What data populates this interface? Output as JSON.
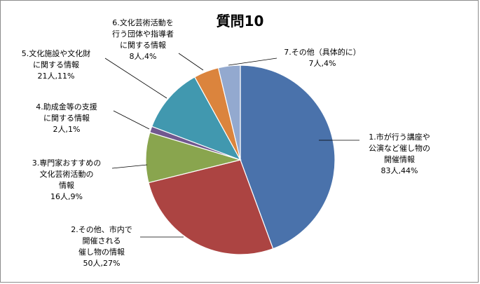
{
  "chart_data": {
    "type": "pie",
    "title": "質問10",
    "slices": [
      {
        "name": "1.市が行う講座や公演など催し物の開催情報",
        "count": "83人",
        "percent_label": "44%",
        "value": 83,
        "color": "#4a72ab",
        "label_lines": [
          "1.市が行う講座や",
          "公演など催し物の",
          "開催情報",
          "83人,44%"
        ]
      },
      {
        "name": "2.その他、市内で開催される催し物の情報",
        "count": "50人",
        "percent_label": "27%",
        "value": 50,
        "color": "#ac4442",
        "label_lines": [
          "2.その他、市内で",
          "開催される",
          "催し物の情報",
          "50人,27%"
        ]
      },
      {
        "name": "3.専門家おすすめの文化芸術活動の情報",
        "count": "16人",
        "percent_label": "9%",
        "value": 16,
        "color": "#89a54e",
        "label_lines": [
          "3.専門家おすすめの",
          "文化芸術活動の",
          "情報",
          "16人,9%"
        ]
      },
      {
        "name": "4.助成金等の支援に関する情報",
        "count": "2人",
        "percent_label": "1%",
        "value": 2,
        "color": "#71588f",
        "label_lines": [
          "4.助成金等の支援",
          "に関する情報",
          "2人,1%"
        ]
      },
      {
        "name": "5.文化施設や文化財に関する情報",
        "count": "21人",
        "percent_label": "11%",
        "value": 21,
        "color": "#4198af",
        "label_lines": [
          "5.文化施設や文化財",
          "に関する情報",
          "21人,11%"
        ]
      },
      {
        "name": "6.文化芸術活動を行う団体や指導者に関する情報",
        "count": "8人",
        "percent_label": "4%",
        "value": 8,
        "color": "#db843d",
        "label_lines": [
          "6.文化芸術活動を",
          "行う団体や指導者",
          "に関する情報",
          "8人,4%"
        ]
      },
      {
        "name": "7.その他（具体的に）",
        "count": "7人",
        "percent_label": "4%",
        "value": 7,
        "color": "#93a9cf",
        "label_lines": [
          "7.その他（具体的に）",
          "7人,4%"
        ]
      }
    ],
    "start_angle_deg": 0,
    "direction": "clockwise",
    "legend": "none"
  }
}
